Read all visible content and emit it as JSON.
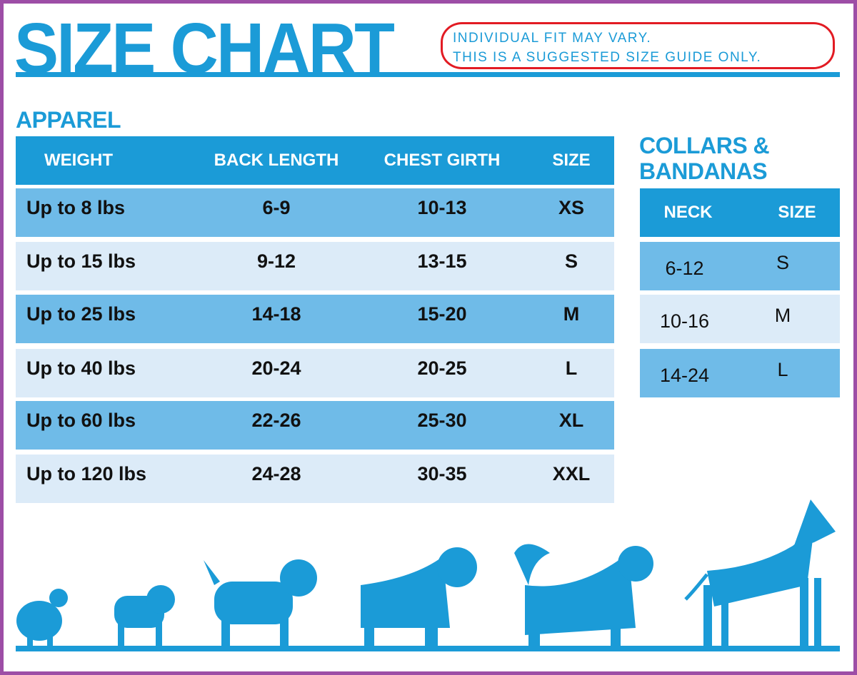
{
  "title": "SIZE CHART",
  "note": {
    "line1": "INDIVIDUAL FIT MAY VARY.",
    "line2": "THIS IS A SUGGESTED SIZE GUIDE ONLY."
  },
  "apparel": {
    "heading": "APPAREL",
    "columns": [
      "WEIGHT",
      "BACK LENGTH",
      "CHEST GIRTH",
      "SIZE"
    ],
    "rows": [
      [
        "Up to 8 lbs",
        "6-9",
        "10-13",
        "XS"
      ],
      [
        "Up to 15 lbs",
        "9-12",
        "13-15",
        "S"
      ],
      [
        "Up to 25 lbs",
        "14-18",
        "15-20",
        "M"
      ],
      [
        "Up to 40 lbs",
        "20-24",
        "20-25",
        "L"
      ],
      [
        "Up to 60 lbs",
        "22-26",
        "25-30",
        "XL"
      ],
      [
        "Up to 120 lbs",
        "24-28",
        "30-35",
        "XXL"
      ]
    ]
  },
  "collars": {
    "heading_line1": "COLLARS &",
    "heading_line2": "BANDANAS",
    "columns": [
      "NECK",
      "SIZE"
    ],
    "rows": [
      [
        "6-12",
        "S"
      ],
      [
        "10-16",
        "M"
      ],
      [
        "14-24",
        "L"
      ]
    ]
  },
  "colors": {
    "brand_blue": "#1b9bd7",
    "dark_row": "#6fbbe8",
    "light_row": "#dcebf8",
    "note_border": "#e21b23",
    "frame": "#9d4ea6"
  },
  "illustration": "dog-silhouettes-small-to-large"
}
